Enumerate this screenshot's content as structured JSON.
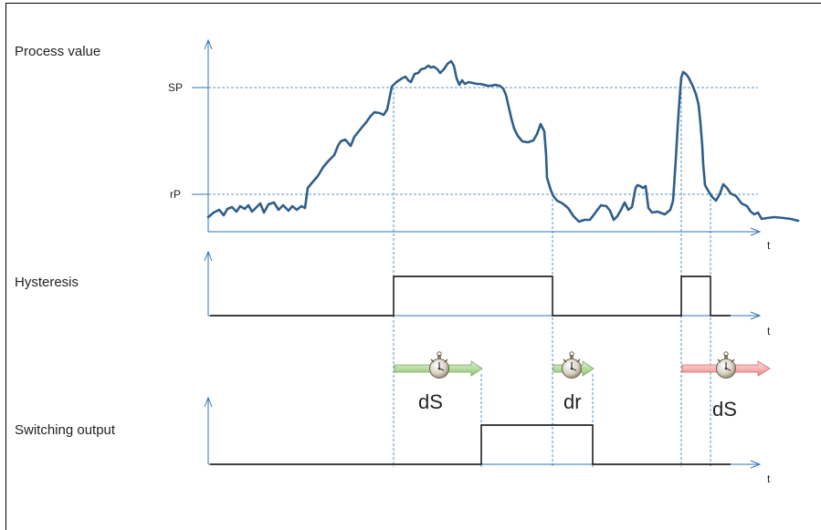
{
  "labels": {
    "process_value": "Process value",
    "hysteresis": "Hysteresis",
    "switching_output": "Switching output",
    "setpoint": "SP",
    "reset_point": "rP",
    "time_axis": "t",
    "switch_delay": "dS",
    "reset_delay": "dr"
  },
  "colors": {
    "axis": "#2e75b6",
    "process_curve": "#2e5f8a",
    "signal": "#000000",
    "delay_arrow_green": "#a9d18e",
    "delay_arrow_red": "#f4a3a3"
  },
  "icons": {
    "timer": "stopwatch-icon"
  }
}
